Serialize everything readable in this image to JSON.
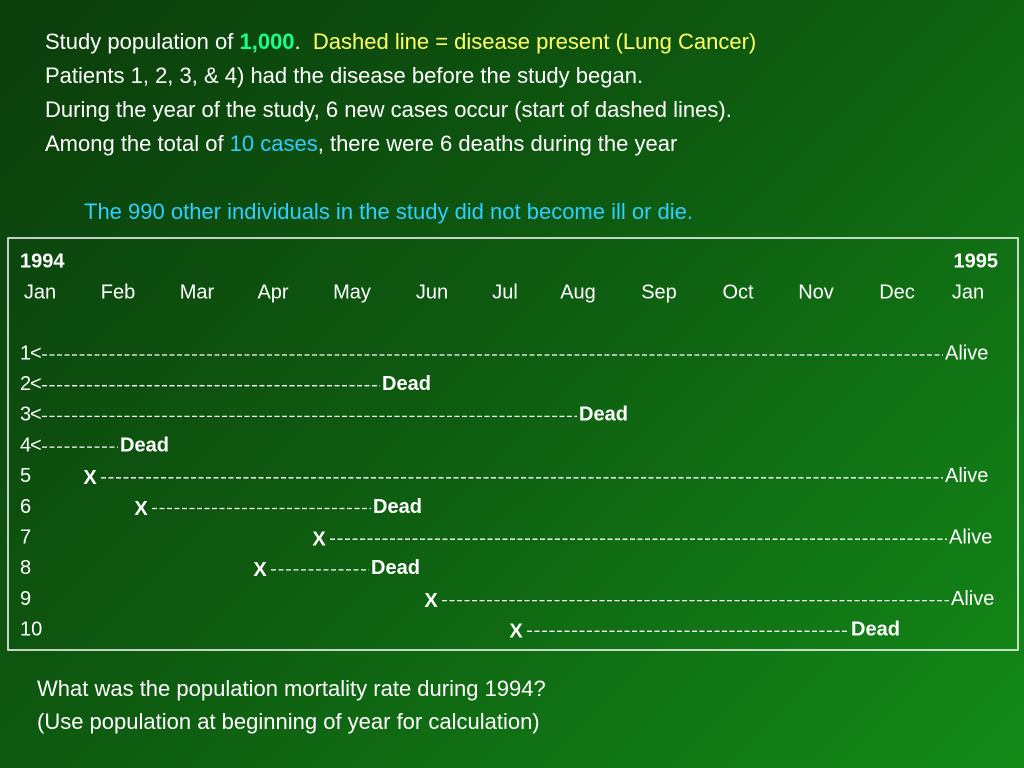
{
  "intro": [
    [
      "Study population of ",
      "1,000",
      ".",
      "Dashed line = disease present (Lung Cancer)"
    ],
    [
      "Patients 1, 2, 3, & 4) had the disease before the study began."
    ],
    [
      "During the year of the study, 6 new cases occur (start of dashed lines)."
    ],
    [
      "Among the total of ",
      "10 cases",
      ", there were 6 deaths during the year"
    ]
  ],
  "note": "The 990 other individuals in the study did not become ill or die.",
  "timeline": {
    "year_start": "1994",
    "year_end": "1995",
    "months": [
      "Jan",
      "Feb",
      "Mar",
      "Apr",
      "May",
      "Jun",
      "Jul",
      "Aug",
      "Sep",
      "Oct",
      "Nov",
      "Dec",
      "Jan"
    ],
    "rows": [
      {
        "label": "1",
        "start": "<",
        "end": "Alive"
      },
      {
        "label": "2",
        "start": "<",
        "end": "Dead"
      },
      {
        "label": "3",
        "start": "<",
        "end": "Dead"
      },
      {
        "label": "4",
        "start": "<",
        "end": "Dead"
      },
      {
        "label": "5",
        "start": "X",
        "end": "Alive"
      },
      {
        "label": "6",
        "start": "X",
        "end": "Dead"
      },
      {
        "label": "7",
        "start": "X",
        "end": "Alive"
      },
      {
        "label": "8",
        "start": "X",
        "end": "Dead"
      },
      {
        "label": "9",
        "start": "X",
        "end": "Alive"
      },
      {
        "label": "10",
        "start": "X",
        "end": "Dead"
      }
    ]
  },
  "question": [
    "What was the population mortality rate during 1994?",
    "(Use population at beginning of year for calculation)"
  ]
}
